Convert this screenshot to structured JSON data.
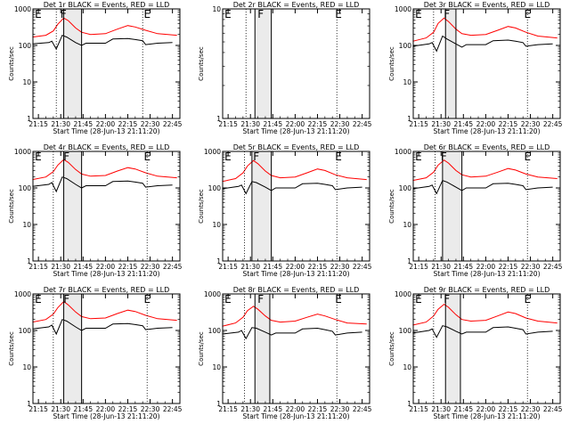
{
  "x_ticks": [
    "21:15",
    "21:30",
    "21:45",
    "22:00",
    "22:15",
    "22:30",
    "22:45"
  ],
  "y_ticks": [
    "1",
    "10",
    "100",
    "1000"
  ],
  "ylabel": "Counts/sec",
  "xlabel": "Start Time (28-Jun-13 21:11:20)",
  "colors": {
    "events": "#000000",
    "lld": "#ff0000",
    "flare_band": "#ebebeb",
    "axes": "#000000"
  },
  "chart_data": [
    {
      "type": "line",
      "title": "Det 1r BLACK = Events, RED = LLD",
      "xlim": [
        "21:11:20",
        "22:50:00"
      ],
      "ylim": [
        1,
        1000
      ],
      "yscale": "log",
      "markers": [
        {
          "text": "E",
          "x": "21:12"
        },
        {
          "text": "F",
          "x": "21:31"
        },
        {
          "text": "E",
          "x": "22:27"
        }
      ],
      "eclipse_lines": [
        "21:27",
        "22:25"
      ],
      "flare_lines": [
        "21:32",
        "21:44"
      ],
      "series": [
        {
          "name": "Events",
          "x": [
            "21:11",
            "21:22",
            "21:24",
            "21:27",
            "21:31",
            "21:34",
            "21:40",
            "21:44",
            "21:47",
            "22:00",
            "22:05",
            "22:15",
            "22:20",
            "22:25",
            "22:27",
            "22:35",
            "22:45"
          ],
          "y": [
            110,
            120,
            130,
            80,
            190,
            170,
            120,
            100,
            115,
            115,
            150,
            155,
            145,
            135,
            105,
            115,
            120
          ]
        },
        {
          "name": "LLD",
          "x": [
            "21:11",
            "21:20",
            "21:25",
            "21:28",
            "21:32",
            "21:35",
            "21:40",
            "21:44",
            "21:50",
            "22:00",
            "22:08",
            "22:15",
            "22:20",
            "22:27",
            "22:35",
            "22:48"
          ],
          "y": [
            170,
            190,
            250,
            380,
            560,
            480,
            300,
            230,
            200,
            210,
            280,
            350,
            320,
            260,
            210,
            190
          ]
        }
      ]
    },
    {
      "type": "line",
      "title": "Det 2r BLACK = Events, RED = LLD",
      "xlim": [
        "21:11:20",
        "22:50:00"
      ],
      "ylim": [
        1,
        10
      ],
      "yscale": "log",
      "markers": [
        {
          "text": "E",
          "x": "21:12"
        },
        {
          "text": "F",
          "x": "21:36"
        },
        {
          "text": "E",
          "x": "22:28"
        }
      ],
      "eclipse_lines": [
        "21:27",
        "22:28"
      ],
      "flare_lines": [
        "21:33",
        "21:44"
      ],
      "series": []
    },
    {
      "type": "line",
      "title": "Det 3r BLACK = Events, RED = LLD",
      "xlim": [
        "21:11:20",
        "22:50:00"
      ],
      "ylim": [
        1,
        1000
      ],
      "yscale": "log",
      "markers": [
        {
          "text": "E",
          "x": "21:12"
        },
        {
          "text": "F",
          "x": "21:33"
        },
        {
          "text": "E",
          "x": "22:27"
        }
      ],
      "eclipse_lines": [
        "21:25",
        "22:28"
      ],
      "flare_lines": [
        "21:33",
        "21:40"
      ],
      "series": [
        {
          "name": "Events",
          "x": [
            "21:11",
            "21:22",
            "21:24",
            "21:27",
            "21:31",
            "21:34",
            "21:40",
            "21:44",
            "21:47",
            "22:00",
            "22:05",
            "22:15",
            "22:20",
            "22:25",
            "22:27",
            "22:35",
            "22:45"
          ],
          "y": [
            95,
            110,
            120,
            70,
            180,
            150,
            110,
            90,
            105,
            105,
            135,
            140,
            130,
            120,
            95,
            105,
            110
          ]
        },
        {
          "name": "LLD",
          "x": [
            "21:11",
            "21:20",
            "21:25",
            "21:28",
            "21:32",
            "21:35",
            "21:40",
            "21:44",
            "21:50",
            "22:00",
            "22:08",
            "22:15",
            "22:20",
            "22:27",
            "22:35",
            "22:48"
          ],
          "y": [
            130,
            160,
            230,
            400,
            560,
            450,
            280,
            210,
            190,
            200,
            260,
            330,
            300,
            230,
            180,
            160
          ]
        }
      ]
    },
    {
      "type": "line",
      "title": "Det 4r BLACK = Events, RED = LLD",
      "xlim": [
        "21:11:20",
        "22:50:00"
      ],
      "ylim": [
        1,
        1000
      ],
      "yscale": "log",
      "markers": [
        {
          "text": "E",
          "x": "21:12"
        },
        {
          "text": "F",
          "x": "21:33"
        },
        {
          "text": "E",
          "x": "22:27"
        }
      ],
      "eclipse_lines": [
        "21:25",
        "22:28"
      ],
      "flare_lines": [
        "21:32",
        "21:44"
      ],
      "series": [
        {
          "name": "Events",
          "x": [
            "21:11",
            "21:22",
            "21:24",
            "21:27",
            "21:31",
            "21:34",
            "21:40",
            "21:44",
            "21:47",
            "22:00",
            "22:05",
            "22:15",
            "22:20",
            "22:25",
            "22:27",
            "22:35",
            "22:45"
          ],
          "y": [
            110,
            125,
            140,
            80,
            200,
            180,
            125,
            100,
            115,
            115,
            150,
            155,
            145,
            135,
            105,
            115,
            120
          ]
        },
        {
          "name": "LLD",
          "x": [
            "21:11",
            "21:20",
            "21:25",
            "21:28",
            "21:32",
            "21:35",
            "21:40",
            "21:44",
            "21:50",
            "22:00",
            "22:08",
            "22:15",
            "22:20",
            "22:27",
            "22:35",
            "22:48"
          ],
          "y": [
            170,
            200,
            280,
            420,
            600,
            500,
            320,
            240,
            210,
            220,
            290,
            360,
            330,
            260,
            210,
            190
          ]
        }
      ]
    },
    {
      "type": "line",
      "title": "Det 5r BLACK = Events, RED = LLD",
      "xlim": [
        "21:11:20",
        "22:50:00"
      ],
      "ylim": [
        1,
        1000
      ],
      "yscale": "log",
      "markers": [
        {
          "text": "E",
          "x": "21:12"
        },
        {
          "text": "F",
          "x": "21:33"
        },
        {
          "text": "E",
          "x": "22:28"
        }
      ],
      "eclipse_lines": [
        "21:26",
        "22:28"
      ],
      "flare_lines": [
        "21:31",
        "21:44"
      ],
      "series": [
        {
          "name": "Events",
          "x": [
            "21:11",
            "21:22",
            "21:24",
            "21:27",
            "21:31",
            "21:34",
            "21:40",
            "21:44",
            "21:47",
            "22:00",
            "22:05",
            "22:15",
            "22:20",
            "22:25",
            "22:27",
            "22:35",
            "22:45"
          ],
          "y": [
            95,
            110,
            120,
            70,
            150,
            140,
            105,
            85,
            100,
            100,
            130,
            135,
            125,
            115,
            90,
            100,
            105
          ]
        },
        {
          "name": "LLD",
          "x": [
            "21:11",
            "21:20",
            "21:25",
            "21:28",
            "21:32",
            "21:35",
            "21:40",
            "21:44",
            "21:50",
            "22:00",
            "22:08",
            "22:15",
            "22:20",
            "22:27",
            "22:35",
            "22:48"
          ],
          "y": [
            150,
            180,
            260,
            400,
            560,
            460,
            290,
            220,
            190,
            200,
            260,
            330,
            300,
            230,
            190,
            170
          ]
        }
      ]
    },
    {
      "type": "line",
      "title": "Det 6r BLACK = Events, RED = LLD",
      "xlim": [
        "21:11:20",
        "22:50:00"
      ],
      "ylim": [
        1,
        1000
      ],
      "yscale": "log",
      "markers": [
        {
          "text": "E",
          "x": "21:12"
        },
        {
          "text": "F",
          "x": "21:31"
        },
        {
          "text": "E",
          "x": "22:27"
        }
      ],
      "eclipse_lines": [
        "21:26",
        "22:28"
      ],
      "flare_lines": [
        "21:31",
        "21:44"
      ],
      "series": [
        {
          "name": "Events",
          "x": [
            "21:11",
            "21:22",
            "21:24",
            "21:27",
            "21:31",
            "21:34",
            "21:40",
            "21:44",
            "21:47",
            "22:00",
            "22:05",
            "22:15",
            "22:20",
            "22:25",
            "22:27",
            "22:35",
            "22:45"
          ],
          "y": [
            95,
            110,
            120,
            70,
            160,
            145,
            105,
            85,
            100,
            100,
            130,
            135,
            125,
            115,
            90,
            100,
            105
          ]
        },
        {
          "name": "LLD",
          "x": [
            "21:11",
            "21:20",
            "21:25",
            "21:28",
            "21:32",
            "21:35",
            "21:40",
            "21:44",
            "21:50",
            "22:00",
            "22:08",
            "22:15",
            "22:20",
            "22:27",
            "22:35",
            "22:48"
          ],
          "y": [
            160,
            190,
            270,
            420,
            580,
            480,
            300,
            230,
            200,
            210,
            270,
            340,
            310,
            240,
            200,
            180
          ]
        }
      ]
    },
    {
      "type": "line",
      "title": "Det 7r BLACK = Events, RED = LLD",
      "xlim": [
        "21:11:20",
        "22:50:00"
      ],
      "ylim": [
        1,
        1000
      ],
      "yscale": "log",
      "markers": [
        {
          "text": "E",
          "x": "21:12"
        },
        {
          "text": "F",
          "x": "21:33"
        },
        {
          "text": "E",
          "x": "22:27"
        }
      ],
      "eclipse_lines": [
        "21:25",
        "22:28"
      ],
      "flare_lines": [
        "21:32",
        "21:44"
      ],
      "series": [
        {
          "name": "Events",
          "x": [
            "21:11",
            "21:22",
            "21:24",
            "21:27",
            "21:31",
            "21:34",
            "21:40",
            "21:44",
            "21:47",
            "22:00",
            "22:05",
            "22:15",
            "22:20",
            "22:25",
            "22:27",
            "22:35",
            "22:45"
          ],
          "y": [
            110,
            125,
            140,
            80,
            200,
            180,
            125,
            100,
            115,
            115,
            150,
            155,
            145,
            135,
            105,
            115,
            120
          ]
        },
        {
          "name": "LLD",
          "x": [
            "21:11",
            "21:20",
            "21:25",
            "21:28",
            "21:32",
            "21:35",
            "21:40",
            "21:44",
            "21:50",
            "22:00",
            "22:08",
            "22:15",
            "22:20",
            "22:27",
            "22:35",
            "22:48"
          ],
          "y": [
            170,
            200,
            280,
            420,
            620,
            500,
            320,
            240,
            210,
            220,
            290,
            360,
            330,
            260,
            210,
            190
          ]
        }
      ]
    },
    {
      "type": "line",
      "title": "Det 8r BLACK = Events, RED = LLD",
      "xlim": [
        "21:11:20",
        "22:50:00"
      ],
      "ylim": [
        1,
        1000
      ],
      "yscale": "log",
      "markers": [
        {
          "text": "E",
          "x": "21:12"
        },
        {
          "text": "F",
          "x": "21:36"
        },
        {
          "text": "E",
          "x": "22:28"
        }
      ],
      "eclipse_lines": [
        "21:26",
        "22:28"
      ],
      "flare_lines": [
        "21:33",
        "21:43"
      ],
      "series": [
        {
          "name": "Events",
          "x": [
            "21:11",
            "21:22",
            "21:24",
            "21:27",
            "21:31",
            "21:34",
            "21:40",
            "21:44",
            "21:47",
            "22:00",
            "22:05",
            "22:15",
            "22:20",
            "22:25",
            "22:27",
            "22:35",
            "22:45"
          ],
          "y": [
            80,
            90,
            100,
            60,
            120,
            115,
            90,
            75,
            85,
            85,
            110,
            115,
            105,
            95,
            75,
            85,
            90
          ]
        },
        {
          "name": "LLD",
          "x": [
            "21:11",
            "21:20",
            "21:25",
            "21:28",
            "21:32",
            "21:35",
            "21:40",
            "21:44",
            "21:50",
            "22:00",
            "22:08",
            "22:15",
            "22:20",
            "22:27",
            "22:35",
            "22:48"
          ],
          "y": [
            130,
            160,
            230,
            350,
            460,
            380,
            250,
            190,
            170,
            180,
            230,
            280,
            250,
            200,
            160,
            150
          ]
        }
      ]
    },
    {
      "type": "line",
      "title": "Det 9r BLACK = Events, RED = LLD",
      "xlim": [
        "21:11:20",
        "22:50:00"
      ],
      "ylim": [
        1,
        1000
      ],
      "yscale": "log",
      "markers": [
        {
          "text": "E",
          "x": "21:12"
        },
        {
          "text": "F",
          "x": "21:33"
        },
        {
          "text": "E",
          "x": "22:27"
        }
      ],
      "eclipse_lines": [
        "21:25",
        "22:28"
      ],
      "flare_lines": [
        "21:33",
        "21:43"
      ],
      "series": [
        {
          "name": "Events",
          "x": [
            "21:11",
            "21:22",
            "21:24",
            "21:27",
            "21:31",
            "21:34",
            "21:40",
            "21:44",
            "21:47",
            "22:00",
            "22:05",
            "22:15",
            "22:20",
            "22:25",
            "22:27",
            "22:35",
            "22:45"
          ],
          "y": [
            85,
            100,
            110,
            65,
            135,
            125,
            95,
            80,
            90,
            90,
            120,
            125,
            115,
            105,
            80,
            90,
            95
          ]
        },
        {
          "name": "LLD",
          "x": [
            "21:11",
            "21:20",
            "21:25",
            "21:28",
            "21:32",
            "21:35",
            "21:40",
            "21:44",
            "21:50",
            "22:00",
            "22:08",
            "22:15",
            "22:20",
            "22:27",
            "22:35",
            "22:48"
          ],
          "y": [
            140,
            170,
            250,
            380,
            520,
            430,
            270,
            200,
            180,
            190,
            250,
            320,
            290,
            220,
            180,
            160
          ]
        }
      ]
    }
  ]
}
